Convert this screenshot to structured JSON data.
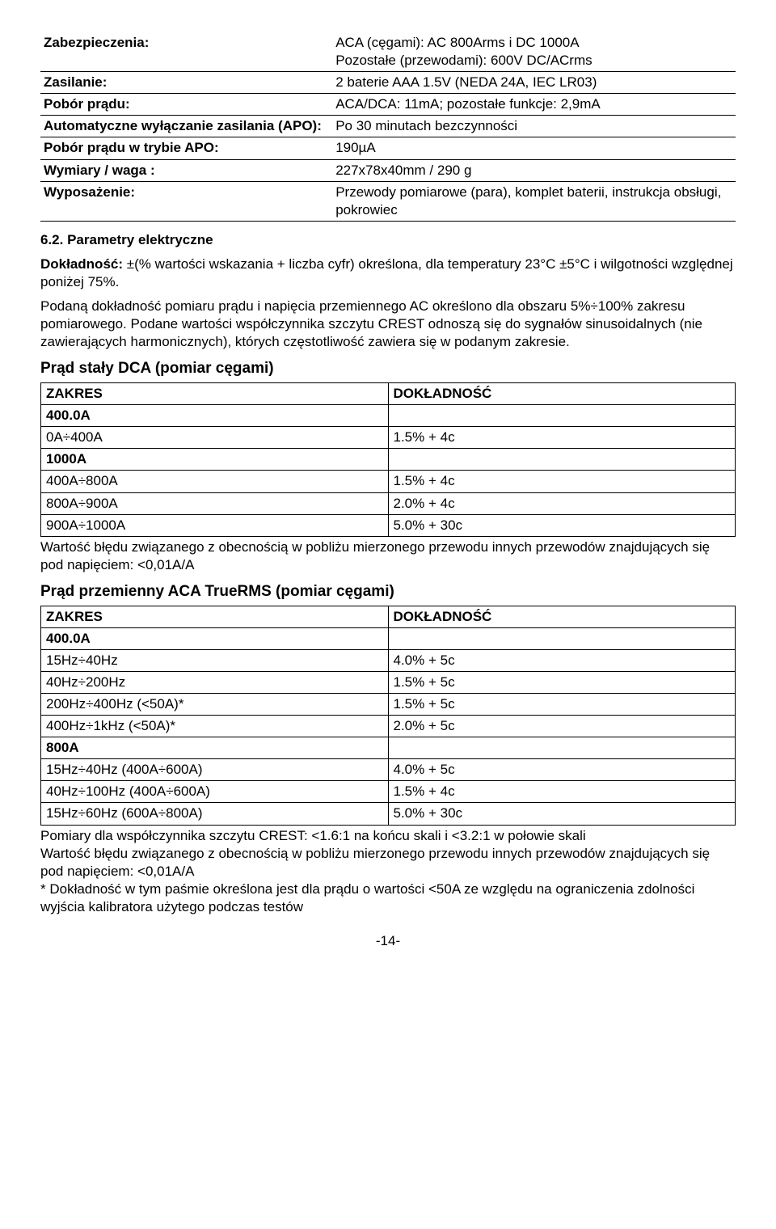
{
  "specs": {
    "rows": [
      {
        "label": "Zabezpieczenia:",
        "value": "ACA (cęgami): AC 800Arms i DC 1000A\nPozostałe (przewodami): 600V DC/ACrms"
      },
      {
        "label": "Zasilanie:",
        "value": "2 baterie AAA 1.5V (NEDA 24A, IEC LR03)"
      },
      {
        "label": "Pobór prądu:",
        "value": "ACA/DCA: 11mA; pozostałe funkcje: 2,9mA"
      },
      {
        "label": "Automatyczne wyłączanie zasilania (APO):",
        "value": "Po 30 minutach bezczynności"
      },
      {
        "label": "Pobór prądu w trybie APO:",
        "value": "190µA"
      },
      {
        "label": "Wymiary / waga :",
        "value": "227x78x40mm / 290 g"
      },
      {
        "label": "Wyposażenie:",
        "value": "Przewody pomiarowe (para), komplet baterii, instrukcja obsługi, pokrowiec"
      }
    ]
  },
  "section_heading": "6.2. Parametry elektryczne",
  "para1": "Dokładność: ±(% wartości wskazania + liczba cyfr) określona, dla temperatury 23°C ±5°C i wilgotności względnej poniżej 75%.",
  "para1_bold": "Dokładność:",
  "para2": "Podaną dokładność pomiaru prądu i napięcia przemiennego AC określono dla obszaru 5%÷100% zakresu pomiarowego. Podane wartości współczynnika szczytu CREST odnoszą się do sygnałów sinusoidalnych (nie zawierających harmonicznych), których częstotliwość zawiera się w podanym zakresie.",
  "dca": {
    "title": "Prąd stały DCA (pomiar cęgami)",
    "head": [
      "ZAKRES",
      "DOKŁADNOŚĆ"
    ],
    "rows": [
      {
        "sub": true,
        "c": [
          "400.0A",
          ""
        ]
      },
      {
        "c": [
          "0A÷400A",
          "1.5% + 4c"
        ]
      },
      {
        "sub": true,
        "c": [
          "1000A",
          ""
        ]
      },
      {
        "c": [
          "400A÷800A",
          "1.5% + 4c"
        ]
      },
      {
        "c": [
          "800A÷900A",
          "2.0% + 4c"
        ]
      },
      {
        "c": [
          "900A÷1000A",
          "5.0% + 30c"
        ]
      }
    ],
    "note": "Wartość błędu związanego z obecnością w pobliżu mierzonego przewodu innych przewodów znajdujących się pod napięciem: <0,01A/A"
  },
  "aca": {
    "title": "Prąd przemienny ACA TrueRMS (pomiar cęgami)",
    "head": [
      "ZAKRES",
      "DOKŁADNOŚĆ"
    ],
    "rows": [
      {
        "sub": true,
        "c": [
          "400.0A",
          ""
        ]
      },
      {
        "c": [
          "15Hz÷40Hz",
          "4.0% + 5c"
        ]
      },
      {
        "c": [
          "40Hz÷200Hz",
          "1.5% + 5c"
        ]
      },
      {
        "c": [
          "200Hz÷400Hz (<50A)*",
          "1.5% + 5c"
        ]
      },
      {
        "c": [
          "400Hz÷1kHz (<50A)*",
          "2.0% + 5c"
        ]
      },
      {
        "sub": true,
        "c": [
          "800A",
          ""
        ]
      },
      {
        "c": [
          "15Hz÷40Hz (400A÷600A)",
          "4.0% + 5c"
        ]
      },
      {
        "c": [
          "40Hz÷100Hz (400A÷600A)",
          "1.5% + 4c"
        ]
      },
      {
        "c": [
          "15Hz÷60Hz (600A÷800A)",
          "5.0% + 30c"
        ]
      }
    ],
    "note": "Pomiary dla współczynnika szczytu CREST: <1.6:1 na końcu skali i <3.2:1 w połowie skali\nWartość błędu związanego z obecnością w pobliżu mierzonego przewodu innych przewodów znajdujących się pod napięciem: <0,01A/A\n* Dokładność w tym paśmie określona jest dla prądu o wartości <50A ze względu na ograniczenia zdolności wyjścia kalibratora użytego podczas testów"
  },
  "pagenum": "-14-"
}
